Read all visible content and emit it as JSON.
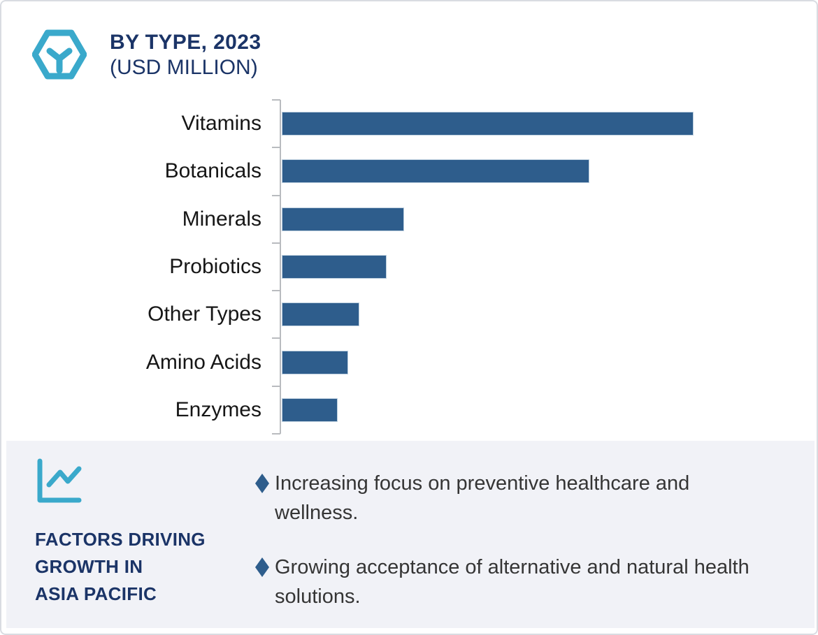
{
  "header": {
    "title": "BY TYPE, 2023",
    "subtitle": "(USD MILLION)",
    "icon": "hexagon-cube-icon"
  },
  "chart_data": {
    "type": "bar",
    "orientation": "horizontal",
    "title": "BY TYPE, 2023 (USD MILLION)",
    "xlabel": "",
    "ylabel": "",
    "categories": [
      "Vitamins",
      "Botanicals",
      "Minerals",
      "Probiotics",
      "Other Types",
      "Amino Acids",
      "Enzymes"
    ],
    "values": [
      589,
      440,
      175,
      150,
      111,
      95,
      80
    ],
    "xlim": [
      0,
      770
    ],
    "grid": false,
    "legend": false,
    "value_labels_shown": false,
    "bar_color": "#2e5d8c",
    "axis_color": "#b9bbbf"
  },
  "factors_panel": {
    "icon": "line-chart-icon",
    "heading_lines": [
      "FACTORS DRIVING",
      "GROWTH IN",
      "ASIA PACIFIC"
    ],
    "bullets": [
      "Increasing focus on preventive healthcare and wellness.",
      "Growing acceptance of alternative and natural health solutions."
    ],
    "bullet_marker": "diamond"
  },
  "colors": {
    "accent_teal": "#3aa9cb",
    "navy": "#1b3467",
    "bar": "#2e5d8c",
    "axis": "#b9bbbf",
    "panel_bg": "#f1f2f7"
  }
}
